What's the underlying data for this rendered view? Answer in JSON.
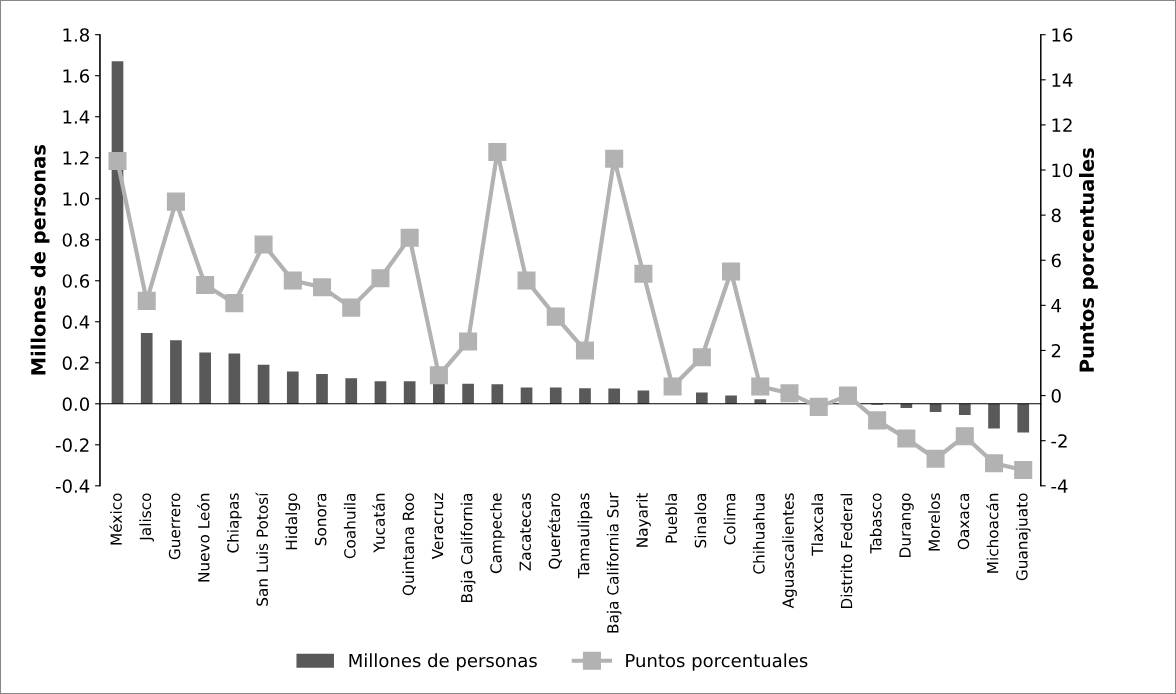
{
  "chart_data": {
    "type": "bar",
    "ylabel": "Millones de personas",
    "y2label": "Puntos porcentuales",
    "categories": [
      "México",
      "Jalisco",
      "Guerrero",
      "Nuevo León",
      "Chiapas",
      "San Luis Potosí",
      "Hidalgo",
      "Sonora",
      "Coahuila",
      "Yucatán",
      "Quintana Roo",
      "Veracruz",
      "Baja California",
      "Campeche",
      "Zacatecas",
      "Querétaro",
      "Tamaulipas",
      "Baja California Sur",
      "Nayarit",
      "Puebla",
      "Sinaloa",
      "Colima",
      "Chihuahua",
      "Aguascalientes",
      "Tlaxcala",
      "Distrito Federal",
      "Tabasco",
      "Durango",
      "Morelos",
      "Oaxaca",
      "Michoacán",
      "Guanajuato"
    ],
    "series": [
      {
        "name": "Millones de personas",
        "type": "bar",
        "color": "#595959",
        "values": [
          1.67,
          0.345,
          0.31,
          0.25,
          0.245,
          0.19,
          0.158,
          0.145,
          0.125,
          0.11,
          0.11,
          0.1,
          0.098,
          0.095,
          0.08,
          0.08,
          0.076,
          0.075,
          0.065,
          null,
          0.055,
          0.04,
          0.022,
          null,
          null,
          null,
          -0.005,
          -0.02,
          -0.04,
          -0.055,
          -0.12,
          -0.14
        ]
      },
      {
        "name": "Puntos porcentuales",
        "type": "line",
        "axis": "y2",
        "color": "#b2b2b2",
        "marker": "square",
        "values": [
          10.4,
          4.2,
          8.6,
          4.9,
          4.1,
          6.7,
          5.1,
          4.8,
          3.9,
          5.2,
          7.0,
          0.9,
          2.4,
          10.8,
          5.1,
          3.5,
          2.0,
          10.5,
          5.4,
          0.4,
          1.7,
          5.5,
          0.4,
          0.1,
          -0.5,
          0.0,
          -1.1,
          -1.9,
          -2.8,
          -1.8,
          -3.0,
          -3.3
        ]
      }
    ],
    "ylim": [
      -0.4,
      1.8
    ],
    "yticks": [
      {
        "value": -0.4,
        "label": "-0.4"
      },
      {
        "value": -0.2,
        "label": "-0.2"
      },
      {
        "value": 0,
        "label": "0.0"
      },
      {
        "value": 0.2,
        "label": "0.2"
      },
      {
        "value": 0.4,
        "label": "0.4"
      },
      {
        "value": 0.6,
        "label": "0.6"
      },
      {
        "value": 0.8,
        "label": "0.8"
      },
      {
        "value": 1.0,
        "label": "1.0"
      },
      {
        "value": 1.2,
        "label": "1.2"
      },
      {
        "value": 1.4,
        "label": "1.4"
      },
      {
        "value": 1.6,
        "label": "1.6"
      },
      {
        "value": 1.8,
        "label": "1.8"
      }
    ],
    "y2lim": [
      -4,
      16
    ],
    "y2ticks": [
      -4,
      -2,
      0,
      2,
      4,
      6,
      8,
      10,
      12,
      14,
      16
    ],
    "legend": "bottom"
  }
}
